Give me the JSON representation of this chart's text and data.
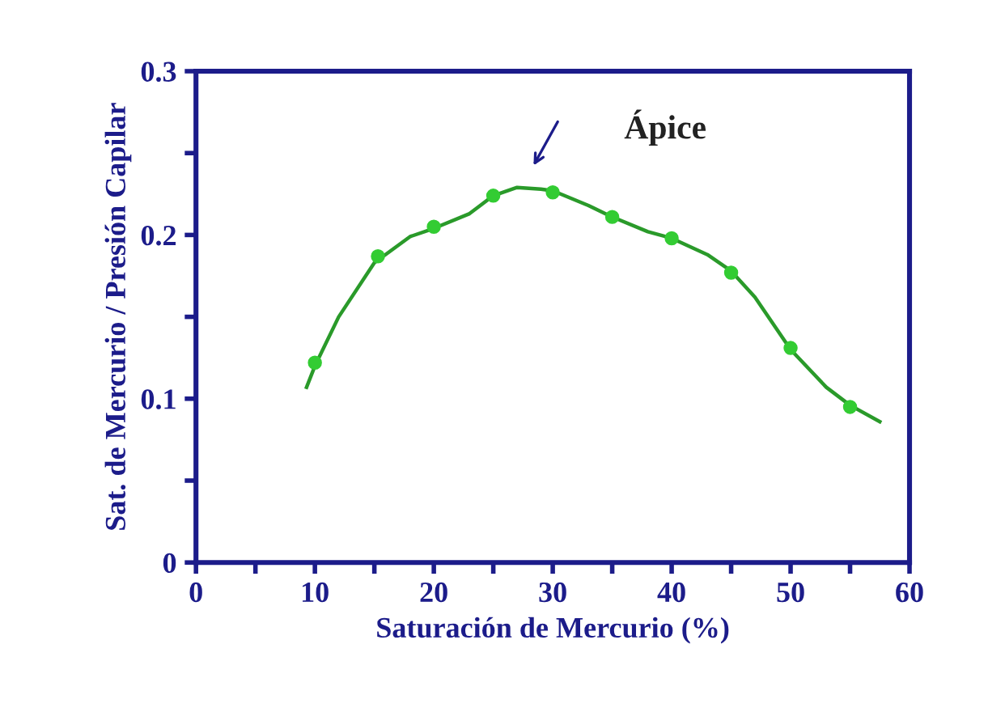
{
  "chart_data": {
    "type": "line",
    "xlabel": "Saturación de Mercurio (%)",
    "ylabel": "Sat. de Mercurio / Presión Capilar",
    "series": [
      {
        "color": "#2a9a2a",
        "marker": "none",
        "x": [
          9.3,
          10,
          12,
          15,
          18,
          20,
          23,
          25,
          27,
          29,
          30,
          33,
          35,
          38,
          40,
          43,
          45,
          47,
          50,
          53,
          55,
          57.5
        ],
        "values": [
          0.107,
          0.12,
          0.15,
          0.183,
          0.199,
          0.204,
          0.213,
          0.224,
          0.229,
          0.228,
          0.227,
          0.218,
          0.211,
          0.202,
          0.198,
          0.188,
          0.178,
          0.162,
          0.13,
          0.107,
          0.096,
          0.086
        ]
      },
      {
        "type": "scatter",
        "color": "#33cc33",
        "marker": "circle",
        "x": [
          10,
          15.3,
          20,
          25,
          30,
          35,
          40,
          45,
          50,
          55
        ],
        "values": [
          0.122,
          0.187,
          0.205,
          0.224,
          0.226,
          0.211,
          0.198,
          0.177,
          0.131,
          0.095
        ]
      }
    ],
    "xlim": [
      0,
      60
    ],
    "ylim": [
      0,
      0.3
    ],
    "xticks": [
      0,
      {
        "value": 5,
        "label": null
      },
      10,
      {
        "value": 15,
        "label": null
      },
      20,
      {
        "value": 25,
        "label": null
      },
      30,
      {
        "value": 35,
        "label": null
      },
      40,
      {
        "value": 45,
        "label": null
      },
      50,
      {
        "value": 55,
        "label": null
      },
      60
    ],
    "yticks": [
      0,
      {
        "value": 0.05,
        "label": null
      },
      0.1,
      {
        "value": 0.15,
        "label": null
      },
      0.2,
      {
        "value": 0.25,
        "label": null
      },
      0.3
    ],
    "grid": false,
    "legend": false,
    "annotations": [
      "Ápice"
    ]
  }
}
